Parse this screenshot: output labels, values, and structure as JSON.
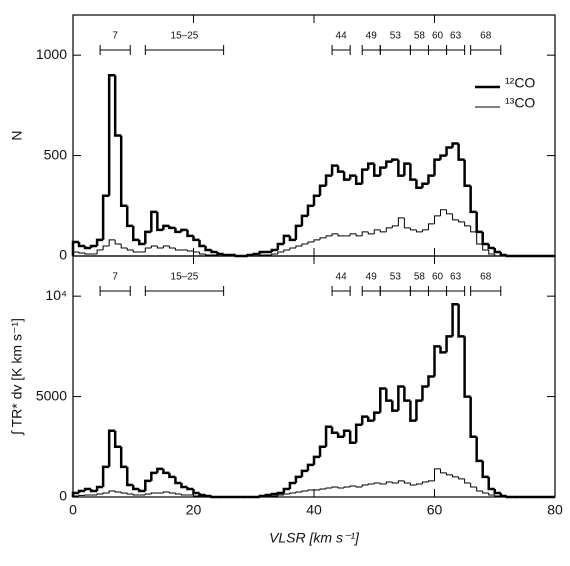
{
  "chart_data": [
    {
      "type": "histogram",
      "ylabel": "N",
      "bins": [
        0,
        1,
        2,
        3,
        4,
        5,
        6,
        7,
        8,
        9,
        10,
        11,
        12,
        13,
        14,
        15,
        16,
        17,
        18,
        19,
        20,
        21,
        22,
        23,
        24,
        25,
        26,
        27,
        28,
        29,
        30,
        31,
        32,
        33,
        34,
        35,
        36,
        37,
        38,
        39,
        40,
        41,
        42,
        43,
        44,
        45,
        46,
        47,
        48,
        49,
        50,
        51,
        52,
        53,
        54,
        55,
        56,
        57,
        58,
        59,
        60,
        61,
        62,
        63,
        64,
        65,
        66,
        67,
        68,
        69,
        70,
        71,
        72,
        73,
        74,
        75,
        76,
        77,
        78,
        79,
        80
      ],
      "series": [
        {
          "name": "¹²CO",
          "color": "#000000",
          "linewidth": 2.5,
          "values": [
            70,
            50,
            40,
            50,
            80,
            300,
            900,
            600,
            250,
            150,
            80,
            60,
            120,
            220,
            130,
            150,
            140,
            120,
            130,
            100,
            80,
            50,
            30,
            20,
            10,
            5,
            5,
            0,
            0,
            5,
            10,
            20,
            20,
            30,
            60,
            100,
            80,
            150,
            200,
            250,
            300,
            350,
            400,
            450,
            420,
            380,
            400,
            360,
            430,
            460,
            400,
            440,
            470,
            480,
            400,
            460,
            380,
            340,
            360,
            400,
            480,
            500,
            540,
            560,
            480,
            350,
            220,
            120,
            60,
            40,
            20,
            5,
            0,
            0,
            0,
            0,
            0,
            0,
            0,
            0
          ]
        },
        {
          "name": "¹³CO",
          "color": "#000000",
          "linewidth": 1,
          "values": [
            20,
            15,
            10,
            10,
            30,
            50,
            80,
            60,
            40,
            30,
            20,
            20,
            40,
            50,
            40,
            50,
            40,
            30,
            30,
            25,
            20,
            10,
            5,
            5,
            0,
            0,
            0,
            0,
            0,
            0,
            0,
            5,
            5,
            10,
            20,
            30,
            40,
            50,
            60,
            70,
            80,
            90,
            100,
            110,
            100,
            100,
            110,
            100,
            120,
            110,
            130,
            120,
            140,
            150,
            190,
            140,
            130,
            120,
            130,
            160,
            200,
            230,
            210,
            180,
            170,
            150,
            120,
            60,
            30,
            10,
            0,
            0,
            0,
            0,
            0,
            0,
            0,
            0,
            0,
            0
          ]
        }
      ],
      "xlim": [
        0,
        80
      ],
      "xticks": [
        0,
        20,
        40,
        60,
        80
      ],
      "show_xtick_labels": false,
      "ylim": [
        0,
        1200
      ],
      "yticks": [
        0,
        500,
        1000
      ],
      "legend": "upper right",
      "ranges": [
        {
          "label": "7",
          "range": [
            4.5,
            9.5
          ]
        },
        {
          "label": "15–25",
          "range": [
            12,
            25
          ]
        },
        {
          "label": "44",
          "range": [
            43,
            46
          ]
        },
        {
          "label": "49",
          "range": [
            48,
            51
          ]
        },
        {
          "label": "53",
          "range": [
            51,
            56
          ]
        },
        {
          "label": "58",
          "range": [
            56,
            59
          ]
        },
        {
          "label": "60",
          "range": [
            59,
            62
          ]
        },
        {
          "label": "63",
          "range": [
            62,
            65
          ]
        },
        {
          "label": "68",
          "range": [
            66,
            71
          ]
        }
      ]
    },
    {
      "type": "histogram",
      "ylabel": "∫ TR* dv  [K km s⁻¹]",
      "xlabel": "VLSR  [km s⁻¹]",
      "bins": [
        0,
        1,
        2,
        3,
        4,
        5,
        6,
        7,
        8,
        9,
        10,
        11,
        12,
        13,
        14,
        15,
        16,
        17,
        18,
        19,
        20,
        21,
        22,
        23,
        24,
        25,
        26,
        27,
        28,
        29,
        30,
        31,
        32,
        33,
        34,
        35,
        36,
        37,
        38,
        39,
        40,
        41,
        42,
        43,
        44,
        45,
        46,
        47,
        48,
        49,
        50,
        51,
        52,
        53,
        54,
        55,
        56,
        57,
        58,
        59,
        60,
        61,
        62,
        63,
        64,
        65,
        66,
        67,
        68,
        69,
        70,
        71,
        72,
        73,
        74,
        75,
        76,
        77,
        78,
        79,
        80
      ],
      "series": [
        {
          "color": "#000000",
          "linewidth": 2.5,
          "values": [
            200,
            300,
            400,
            300,
            500,
            1500,
            3300,
            2500,
            1500,
            600,
            400,
            300,
            800,
            1200,
            1400,
            1200,
            1000,
            700,
            500,
            400,
            200,
            100,
            50,
            0,
            0,
            0,
            0,
            0,
            0,
            0,
            0,
            50,
            100,
            150,
            200,
            400,
            700,
            1000,
            1300,
            1600,
            2000,
            2500,
            3500,
            3200,
            3000,
            3300,
            2700,
            3600,
            4000,
            3800,
            4200,
            5400,
            4800,
            4300,
            5500,
            4800,
            3800,
            4800,
            5500,
            6000,
            7500,
            7200,
            8000,
            9600,
            8000,
            5000,
            3000,
            1800,
            1000,
            400,
            200,
            50,
            0,
            0,
            0,
            0,
            0,
            0,
            0,
            0
          ]
        },
        {
          "color": "#000000",
          "linewidth": 1,
          "values": [
            50,
            80,
            100,
            100,
            150,
            200,
            300,
            250,
            200,
            150,
            100,
            100,
            150,
            200,
            200,
            250,
            200,
            150,
            100,
            100,
            50,
            20,
            0,
            0,
            0,
            0,
            0,
            0,
            0,
            0,
            0,
            0,
            20,
            50,
            100,
            150,
            200,
            250,
            300,
            350,
            350,
            400,
            450,
            500,
            450,
            500,
            550,
            500,
            600,
            650,
            700,
            650,
            750,
            700,
            800,
            700,
            600,
            650,
            750,
            800,
            1400,
            1200,
            1100,
            1000,
            900,
            700,
            500,
            300,
            200,
            100,
            50,
            0,
            0,
            0,
            0,
            0,
            0,
            0,
            0,
            0
          ]
        }
      ],
      "xlim": [
        0,
        80
      ],
      "xticks": [
        0,
        20,
        40,
        60,
        80
      ],
      "show_xtick_labels": true,
      "ylim": [
        0,
        12000
      ],
      "yticks": [
        0,
        5000,
        {
          "value": 10000,
          "label": "10⁴"
        }
      ],
      "ranges": [
        {
          "label": "7",
          "range": [
            4.5,
            9.5
          ]
        },
        {
          "label": "15–25",
          "range": [
            12,
            25
          ]
        },
        {
          "label": "44",
          "range": [
            43,
            46
          ]
        },
        {
          "label": "49",
          "range": [
            48,
            51
          ]
        },
        {
          "label": "53",
          "range": [
            51,
            56
          ]
        },
        {
          "label": "58",
          "range": [
            56,
            59
          ]
        },
        {
          "label": "60",
          "range": [
            59,
            62
          ]
        },
        {
          "label": "63",
          "range": [
            62,
            65
          ]
        },
        {
          "label": "68",
          "range": [
            66,
            71
          ]
        }
      ]
    }
  ]
}
